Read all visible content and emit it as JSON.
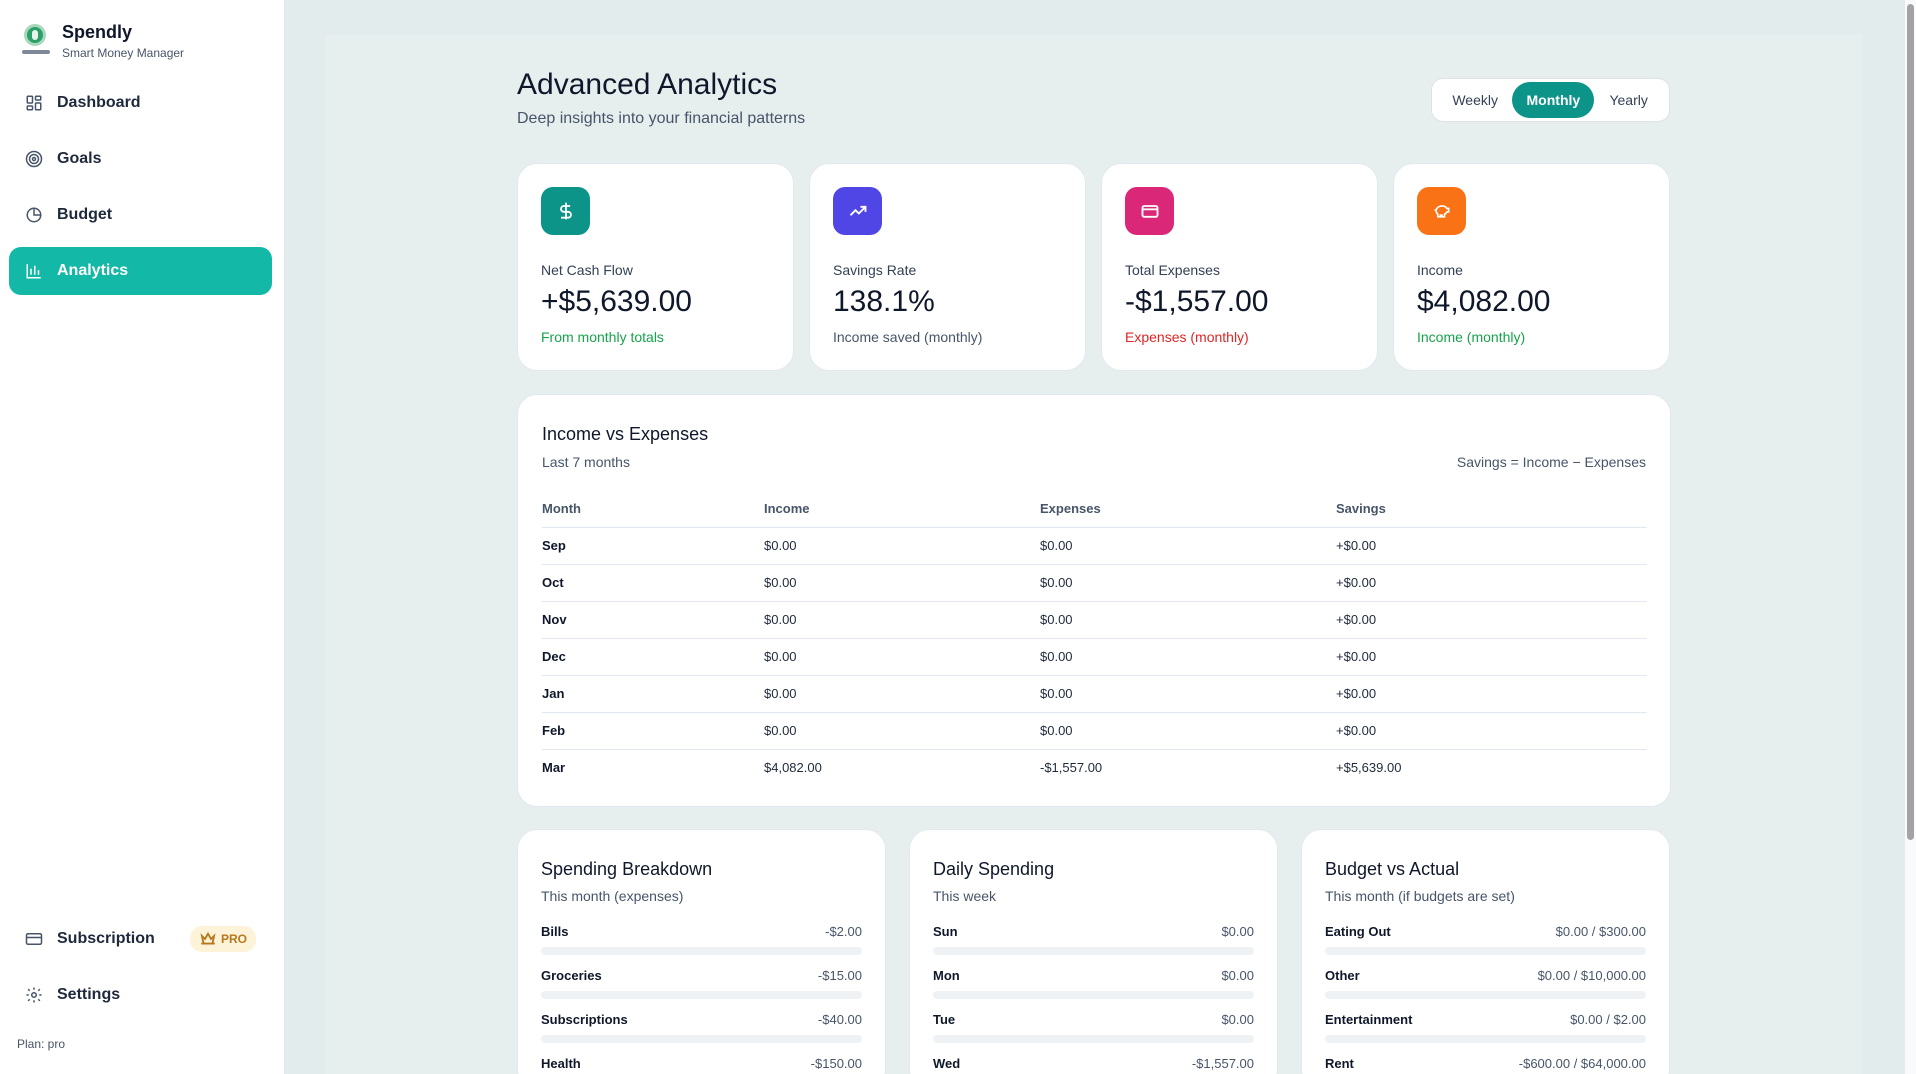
{
  "app": {
    "name": "Spendly",
    "tagline": "Smart Money Manager"
  },
  "nav": {
    "items": [
      {
        "label": "Dashboard",
        "icon": "grid-icon"
      },
      {
        "label": "Goals",
        "icon": "target-icon"
      },
      {
        "label": "Budget",
        "icon": "pie-chart-icon"
      },
      {
        "label": "Analytics",
        "icon": "bar-chart-icon",
        "active": true
      }
    ],
    "bottom": [
      {
        "label": "Subscription",
        "icon": "card-icon",
        "badge": "PRO"
      },
      {
        "label": "Settings",
        "icon": "gear-icon"
      }
    ],
    "plan": "Plan: pro"
  },
  "header": {
    "title": "Advanced Analytics",
    "subtitle": "Deep insights into your financial patterns"
  },
  "period": {
    "options": [
      "Weekly",
      "Monthly",
      "Yearly"
    ],
    "selected": "Monthly"
  },
  "stats": [
    {
      "label": "Net Cash Flow",
      "value": "+$5,639.00",
      "note": "From monthly totals",
      "icon": "dollar-icon",
      "color": "#0d9488"
    },
    {
      "label": "Savings Rate",
      "value": "138.1%",
      "note": "Income saved (monthly)",
      "icon": "trending-up-icon",
      "color": "#4f46e5"
    },
    {
      "label": "Total Expenses",
      "value": "-$1,557.00",
      "note": "Expenses (monthly)",
      "icon": "credit-card-icon",
      "color": "#db2777"
    },
    {
      "label": "Income",
      "value": "$4,082.00",
      "note": "Income (monthly)",
      "icon": "piggy-bank-icon",
      "color": "#f97316"
    }
  ],
  "income_vs_expenses": {
    "title": "Income vs Expenses",
    "subtitle": "Last 7 months",
    "formula": "Savings = Income − Expenses",
    "columns": [
      "Month",
      "Income",
      "Expenses",
      "Savings"
    ],
    "rows": [
      [
        "Sep",
        "$0.00",
        "$0.00",
        "+$0.00"
      ],
      [
        "Oct",
        "$0.00",
        "$0.00",
        "+$0.00"
      ],
      [
        "Nov",
        "$0.00",
        "$0.00",
        "+$0.00"
      ],
      [
        "Dec",
        "$0.00",
        "$0.00",
        "+$0.00"
      ],
      [
        "Jan",
        "$0.00",
        "$0.00",
        "+$0.00"
      ],
      [
        "Feb",
        "$0.00",
        "$0.00",
        "+$0.00"
      ],
      [
        "Mar",
        "$4,082.00",
        "-$1,557.00",
        "+$5,639.00"
      ]
    ]
  },
  "spending_breakdown": {
    "title": "Spending Breakdown",
    "subtitle": "This month (expenses)",
    "items": [
      {
        "label": "Bills",
        "value": "-$2.00",
        "fill": 0.0
      },
      {
        "label": "Groceries",
        "value": "-$15.00",
        "fill": 0.0
      },
      {
        "label": "Subscriptions",
        "value": "-$40.00",
        "fill": 0.0
      },
      {
        "label": "Health",
        "value": "-$150.00",
        "fill": 0.0
      }
    ]
  },
  "daily_spending": {
    "title": "Daily Spending",
    "subtitle": "This week",
    "items": [
      {
        "label": "Sun",
        "value": "$0.00",
        "fill": 0.0
      },
      {
        "label": "Mon",
        "value": "$0.00",
        "fill": 0.0
      },
      {
        "label": "Tue",
        "value": "$0.00",
        "fill": 0.0
      },
      {
        "label": "Wed",
        "value": "-$1,557.00",
        "fill": 0.0
      }
    ]
  },
  "budget_vs_actual": {
    "title": "Budget vs Actual",
    "subtitle": "This month (if budgets are set)",
    "items": [
      {
        "label": "Eating Out",
        "value": "$0.00 / $300.00",
        "fill": 0.0
      },
      {
        "label": "Other",
        "value": "$0.00 / $10,000.00",
        "fill": 0.0
      },
      {
        "label": "Entertainment",
        "value": "$0.00 / $2.00",
        "fill": 0.0
      },
      {
        "label": "Rent",
        "value": "-$600.00 / $64,000.00",
        "fill": 0.0
      }
    ]
  }
}
